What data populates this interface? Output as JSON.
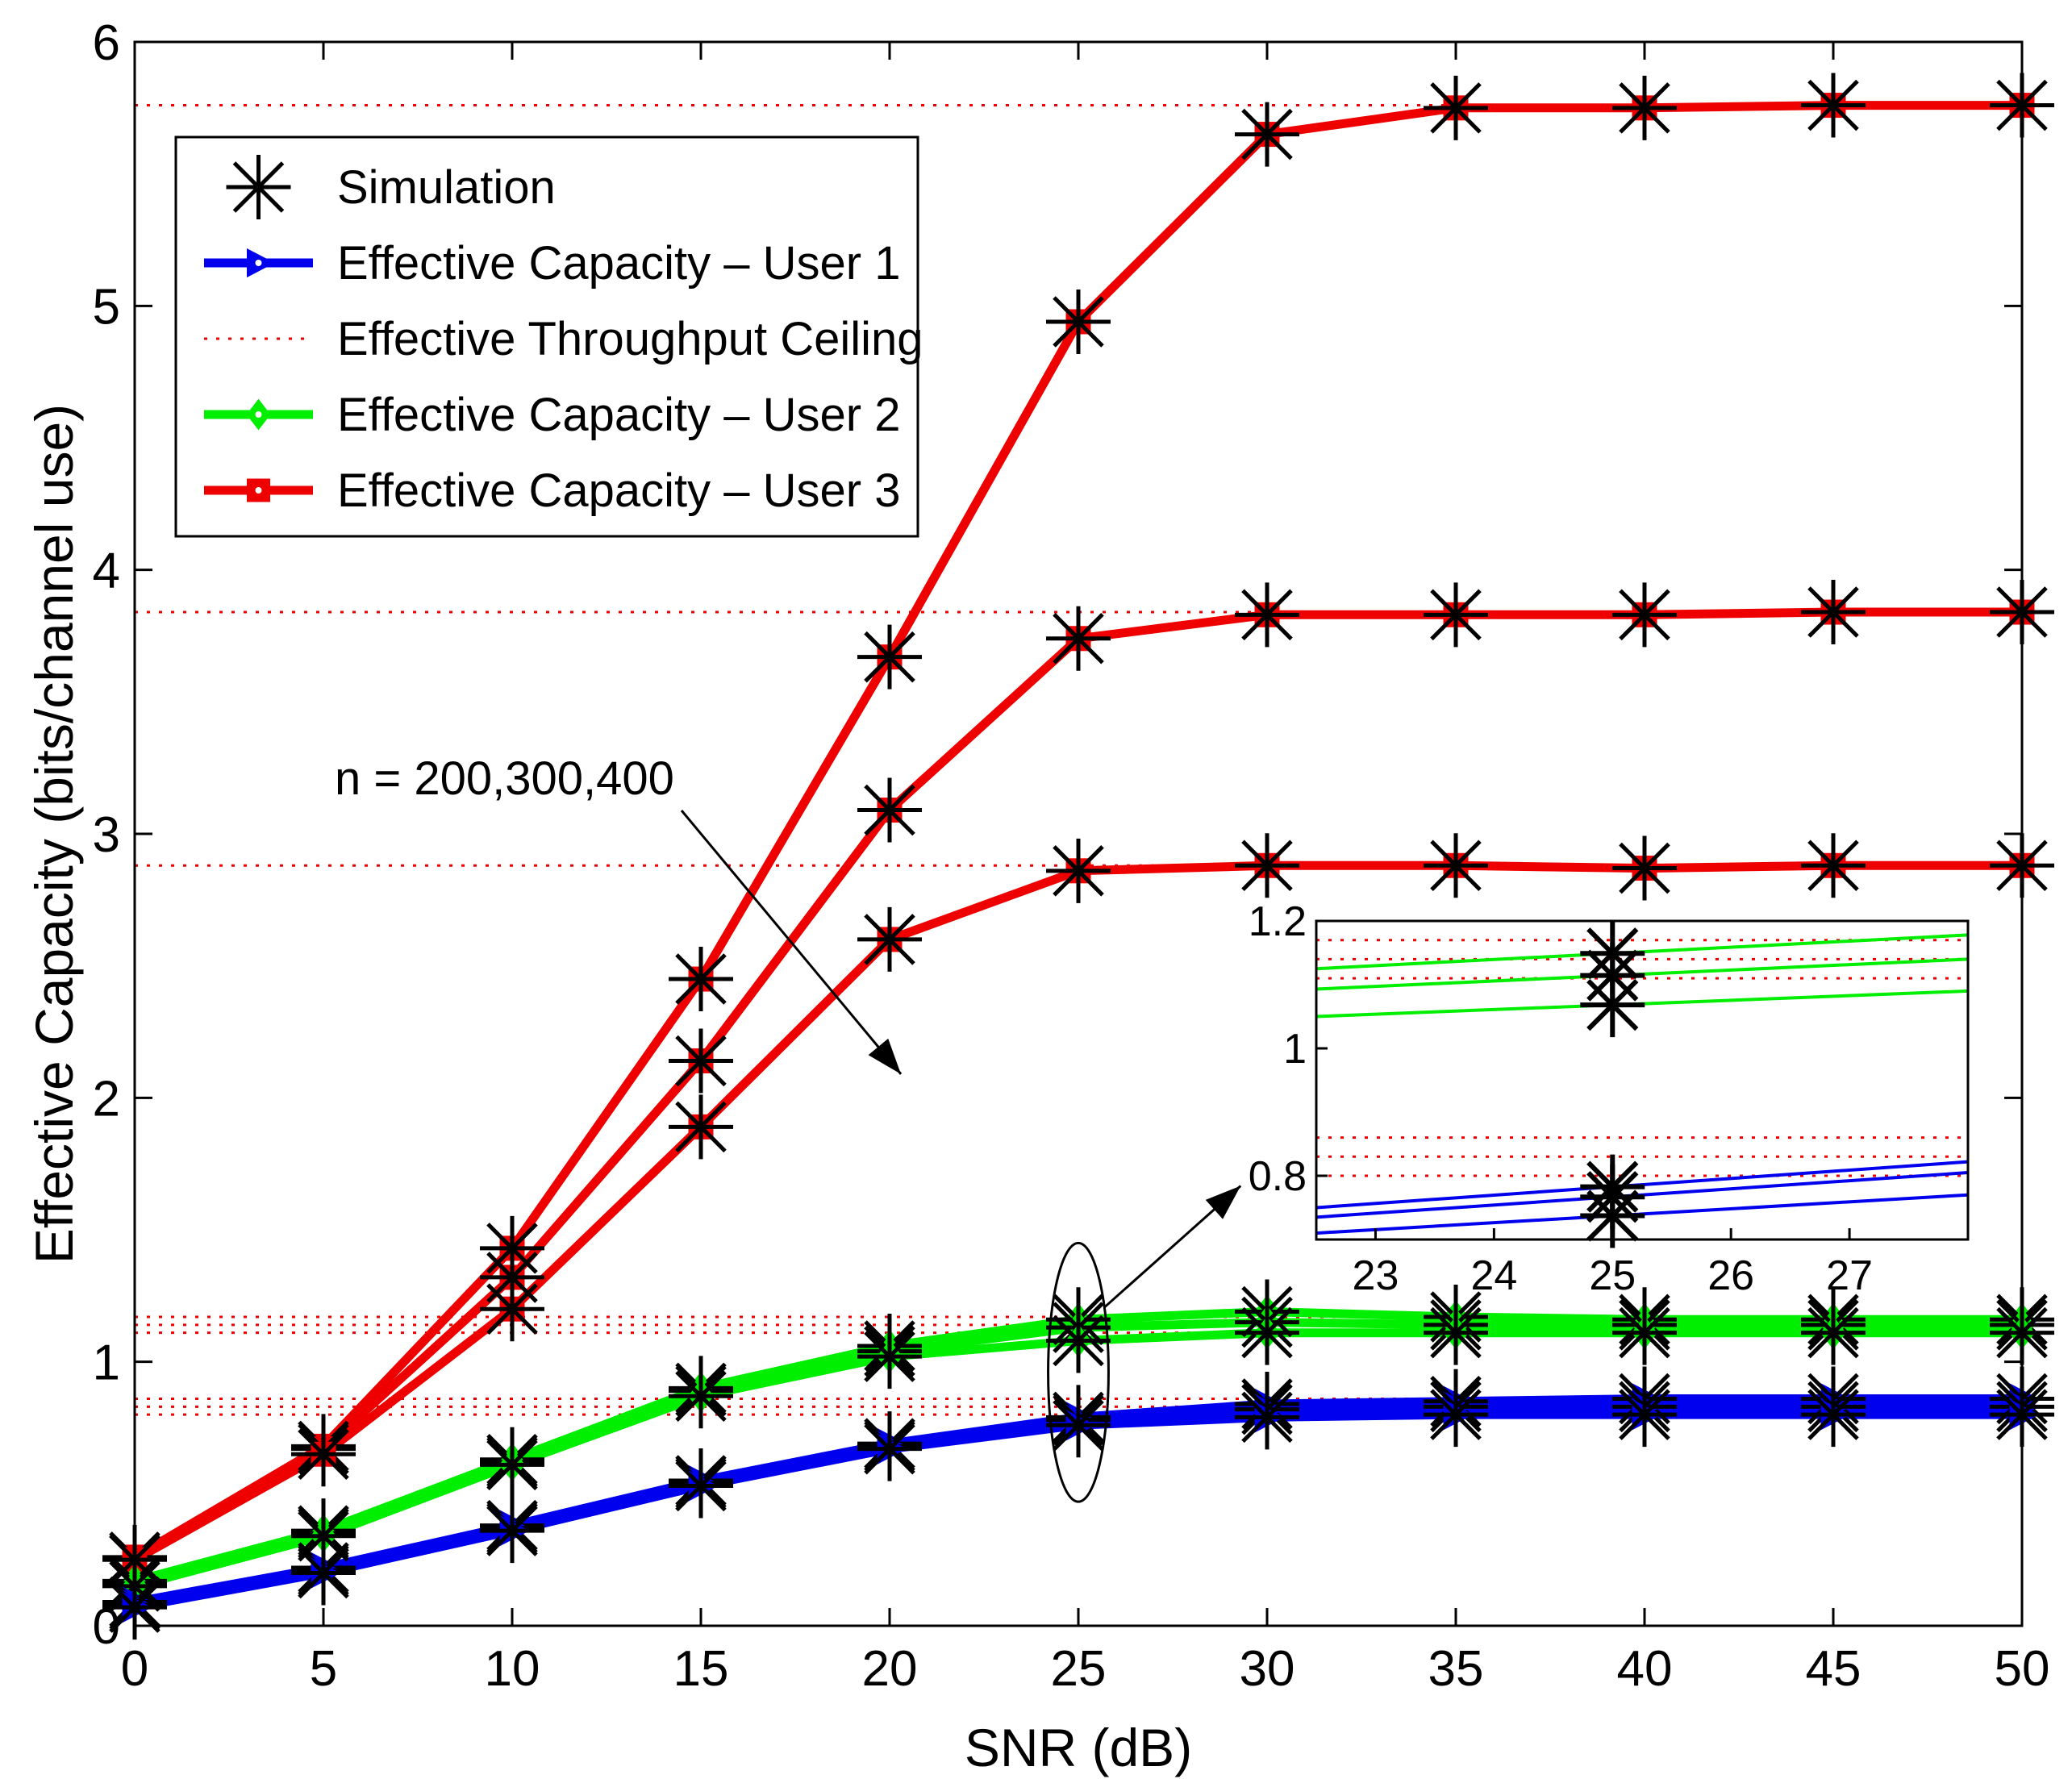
{
  "chart_data": {
    "type": "line",
    "xlabel": "SNR (dB)",
    "ylabel": "Effective Capacity (bits/channel use)",
    "xlim": [
      0,
      50
    ],
    "ylim": [
      0,
      6
    ],
    "x_ticks": [
      "0",
      "5",
      "10",
      "15",
      "20",
      "25",
      "30",
      "35",
      "40",
      "45",
      "50"
    ],
    "y_ticks": [
      "0",
      "1",
      "2",
      "3",
      "4",
      "5",
      "6"
    ],
    "x": [
      0,
      5,
      10,
      15,
      20,
      25,
      30,
      35,
      40,
      45,
      50
    ],
    "colors": {
      "user1": "#0000ee",
      "user2": "#00ee00",
      "user3": "#ee0000",
      "ceiling": "#ee0000",
      "simulation": "#000000"
    },
    "legend": {
      "position": "top-left",
      "entries": [
        {
          "label": "Simulation",
          "key": "simulation"
        },
        {
          "label": "Effective Capacity – User 1",
          "key": "user1"
        },
        {
          "label": "Effective Throughput Ceiling",
          "key": "ceiling"
        },
        {
          "label": "Effective Capacity – User 2",
          "key": "user2"
        },
        {
          "label": "Effective Capacity – User 3",
          "key": "user3"
        }
      ]
    },
    "series": [
      {
        "name": "User 3, n=400",
        "user": "user3",
        "values": [
          0.26,
          0.68,
          1.43,
          2.45,
          3.67,
          4.94,
          5.65,
          5.75,
          5.75,
          5.76,
          5.76
        ]
      },
      {
        "name": "User 3, n=300",
        "user": "user3",
        "values": [
          0.25,
          0.67,
          1.32,
          2.14,
          3.09,
          3.74,
          3.83,
          3.83,
          3.83,
          3.84,
          3.84
        ]
      },
      {
        "name": "User 3, n=200",
        "user": "user3",
        "values": [
          0.25,
          0.65,
          1.2,
          1.89,
          2.6,
          2.86,
          2.88,
          2.88,
          2.87,
          2.88,
          2.88
        ]
      },
      {
        "name": "User 2, n=400",
        "user": "user2",
        "values": [
          0.17,
          0.36,
          0.63,
          0.9,
          1.06,
          1.16,
          1.19,
          1.17,
          1.16,
          1.16,
          1.16
        ]
      },
      {
        "name": "User 2, n=300",
        "user": "user2",
        "values": [
          0.16,
          0.35,
          0.62,
          0.89,
          1.04,
          1.13,
          1.15,
          1.14,
          1.14,
          1.14,
          1.14
        ]
      },
      {
        "name": "User 2, n=200",
        "user": "user2",
        "values": [
          0.15,
          0.34,
          0.61,
          0.87,
          1.02,
          1.08,
          1.11,
          1.11,
          1.11,
          1.11,
          1.11
        ]
      },
      {
        "name": "User 1, n=400",
        "user": "user1",
        "values": [
          0.09,
          0.22,
          0.38,
          0.55,
          0.69,
          0.79,
          0.84,
          0.85,
          0.86,
          0.86,
          0.86
        ]
      },
      {
        "name": "User 1, n=300",
        "user": "user1",
        "values": [
          0.08,
          0.21,
          0.37,
          0.54,
          0.68,
          0.78,
          0.82,
          0.83,
          0.83,
          0.83,
          0.83
        ]
      },
      {
        "name": "User 1, n=200",
        "user": "user1",
        "values": [
          0.07,
          0.2,
          0.36,
          0.53,
          0.67,
          0.76,
          0.79,
          0.8,
          0.8,
          0.8,
          0.8
        ]
      }
    ],
    "ceilings": [
      5.76,
      3.84,
      2.88,
      1.17,
      1.14,
      1.11,
      0.86,
      0.83,
      0.8
    ],
    "annotation": {
      "text": "n = 200,300,400",
      "x": 13.0,
      "y": 3.2,
      "arrow_to": [
        20.3,
        2.09
      ]
    },
    "ellipse": {
      "cx": 25,
      "cy": 0.96,
      "rx": 0.8,
      "ry": 0.49,
      "arrow_to": [
        29.3,
        0.75
      ]
    },
    "inset": {
      "xlim": [
        22.5,
        28.0
      ],
      "ylim": [
        0.7,
        1.2
      ],
      "x_ticks": [
        "23",
        "24",
        "25",
        "26",
        "27"
      ],
      "y_ticks": [
        "0.8",
        "1",
        "1.2"
      ],
      "x_tick_values": [
        23,
        24,
        25,
        26,
        27
      ],
      "y_tick_values": [
        0.8,
        1.0,
        1.2
      ],
      "simulation_x": 25,
      "lines": [
        {
          "user": "user2",
          "y0": 1.125,
          "y1": 1.178
        },
        {
          "user": "user2",
          "y0": 1.093,
          "y1": 1.14
        },
        {
          "user": "user2",
          "y0": 1.05,
          "y1": 1.09
        },
        {
          "user": "user1",
          "y0": 0.75,
          "y1": 0.822
        },
        {
          "user": "user1",
          "y0": 0.735,
          "y1": 0.805
        },
        {
          "user": "user1",
          "y0": 0.71,
          "y1": 0.77
        }
      ],
      "ceilings": [
        1.17,
        1.14,
        1.11,
        0.86,
        0.83,
        0.8
      ]
    }
  }
}
